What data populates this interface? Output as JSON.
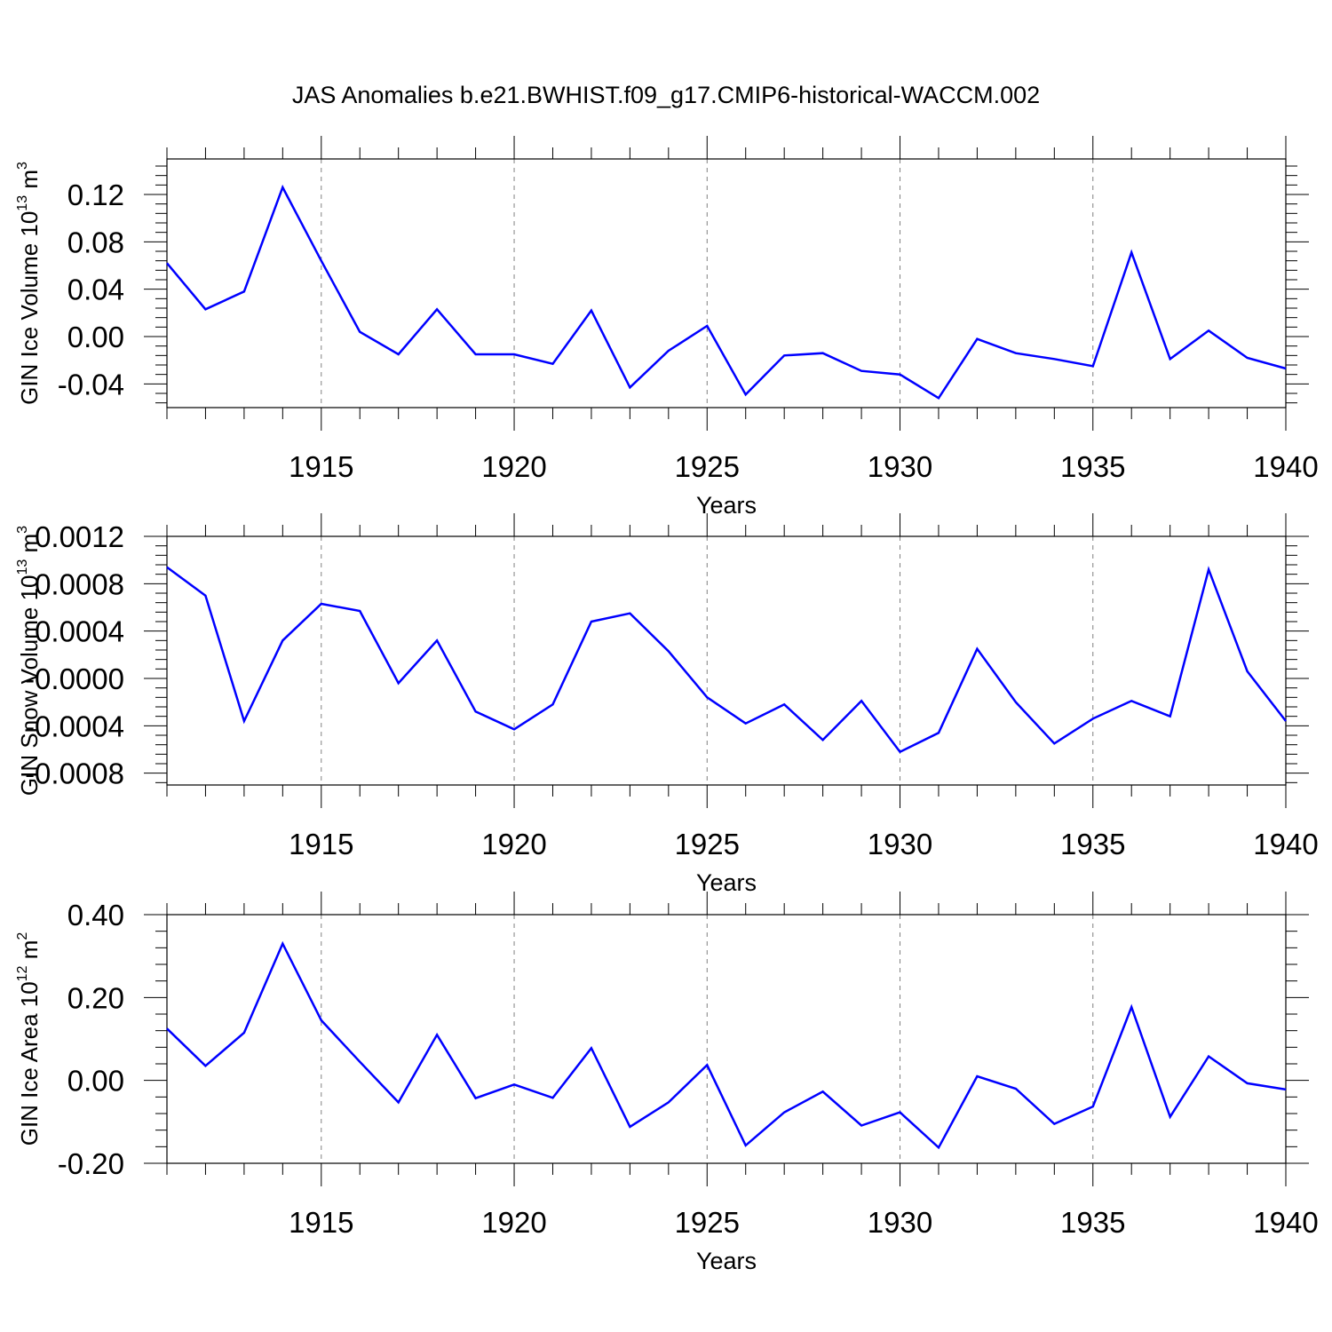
{
  "title": "JAS Anomalies b.e21.BWHIST.f09_g17.CMIP6-historical-WACCM.002",
  "chart_data": [
    {
      "type": "line",
      "name": "gin-ice-volume",
      "ylabel": {
        "base": "GIN Ice Volume 10",
        "exp1": "13",
        "unit": " m",
        "exp2": "3"
      },
      "xlabel": "Years",
      "xlim": [
        1911,
        1940
      ],
      "ylim": [
        -0.06,
        0.15
      ],
      "yticks": [
        0.12,
        0.08,
        0.04,
        0.0,
        -0.04
      ],
      "ytick_labels": [
        "0.12",
        "0.08",
        "0.04",
        "0.00",
        "-0.04"
      ],
      "xticks": [
        1915,
        1920,
        1925,
        1930,
        1935,
        1940
      ],
      "xtick_labels": [
        "1915",
        "1920",
        "1925",
        "1930",
        "1935",
        "1940"
      ],
      "grid": "x-dashed",
      "line_color": "#0000ff",
      "x": [
        1911,
        1912,
        1913,
        1914,
        1915,
        1916,
        1917,
        1918,
        1919,
        1920,
        1921,
        1922,
        1923,
        1924,
        1925,
        1926,
        1927,
        1928,
        1929,
        1930,
        1931,
        1932,
        1933,
        1934,
        1935,
        1936,
        1937,
        1938,
        1939,
        1940
      ],
      "values": [
        0.062,
        0.023,
        0.038,
        0.126,
        0.064,
        0.004,
        -0.015,
        0.023,
        -0.015,
        -0.015,
        -0.023,
        0.022,
        -0.043,
        -0.012,
        0.009,
        -0.049,
        -0.016,
        -0.014,
        -0.029,
        -0.032,
        -0.052,
        -0.002,
        -0.014,
        -0.019,
        -0.025,
        0.071,
        -0.019,
        0.005,
        -0.018,
        -0.027
      ]
    },
    {
      "type": "line",
      "name": "gin-snow-volume",
      "ylabel": {
        "base": "GIN Snow Volume 10",
        "exp1": "13",
        "unit": " m",
        "exp2": "3"
      },
      "xlabel": "Years",
      "xlim": [
        1911,
        1940
      ],
      "ylim": [
        -0.0009,
        0.0012
      ],
      "yticks": [
        0.0012,
        0.0008,
        0.0004,
        0.0,
        -0.0004,
        -0.0008
      ],
      "ytick_labels": [
        "0.0012",
        "0.0008",
        "0.0004",
        "-0.0000",
        "-0.0004",
        "-0.0008"
      ],
      "xticks": [
        1915,
        1920,
        1925,
        1930,
        1935,
        1940
      ],
      "xtick_labels": [
        "1915",
        "1920",
        "1925",
        "1930",
        "1935",
        "1940"
      ],
      "grid": "x-dashed",
      "line_color": "#0000ff",
      "x": [
        1911,
        1912,
        1913,
        1914,
        1915,
        1916,
        1917,
        1918,
        1919,
        1920,
        1921,
        1922,
        1923,
        1924,
        1925,
        1926,
        1927,
        1928,
        1929,
        1930,
        1931,
        1932,
        1933,
        1934,
        1935,
        1936,
        1937,
        1938,
        1939,
        1940
      ],
      "values": [
        0.00094,
        0.0007,
        -0.00036,
        0.00032,
        0.00063,
        0.00057,
        -4e-05,
        0.00032,
        -0.00028,
        -0.00043,
        -0.00022,
        0.00048,
        0.00055,
        0.00023,
        -0.00016,
        -0.00038,
        -0.00022,
        -0.00052,
        -0.00019,
        -0.00062,
        -0.00046,
        0.00025,
        -0.0002,
        -0.00055,
        -0.00034,
        -0.00019,
        -0.00032,
        0.00092,
        6e-05,
        -0.00036
      ]
    },
    {
      "type": "line",
      "name": "gin-ice-area",
      "ylabel": {
        "base": "GIN Ice Area 10",
        "exp1": "12",
        "unit": " m",
        "exp2": "2"
      },
      "xlabel": "Years",
      "xlim": [
        1911,
        1940
      ],
      "ylim": [
        -0.2,
        0.4
      ],
      "yticks": [
        0.4,
        0.2,
        0.0,
        -0.2
      ],
      "ytick_labels": [
        "0.40",
        "0.20",
        "0.00",
        "-0.20"
      ],
      "xticks": [
        1915,
        1920,
        1925,
        1930,
        1935,
        1940
      ],
      "xtick_labels": [
        "1915",
        "1920",
        "1925",
        "1930",
        "1935",
        "1940"
      ],
      "grid": "x-dashed",
      "line_color": "#0000ff",
      "x": [
        1911,
        1912,
        1913,
        1914,
        1915,
        1916,
        1917,
        1918,
        1919,
        1920,
        1921,
        1922,
        1923,
        1924,
        1925,
        1926,
        1927,
        1928,
        1929,
        1930,
        1931,
        1932,
        1933,
        1934,
        1935,
        1936,
        1937,
        1938,
        1939,
        1940
      ],
      "values": [
        0.125,
        0.035,
        0.115,
        0.33,
        0.145,
        0.045,
        -0.053,
        0.11,
        -0.043,
        -0.01,
        -0.042,
        0.078,
        -0.112,
        -0.053,
        0.037,
        -0.157,
        -0.077,
        -0.027,
        -0.109,
        -0.077,
        -0.162,
        0.01,
        -0.02,
        -0.105,
        -0.063,
        0.177,
        -0.088,
        0.058,
        -0.007,
        -0.022
      ]
    }
  ]
}
